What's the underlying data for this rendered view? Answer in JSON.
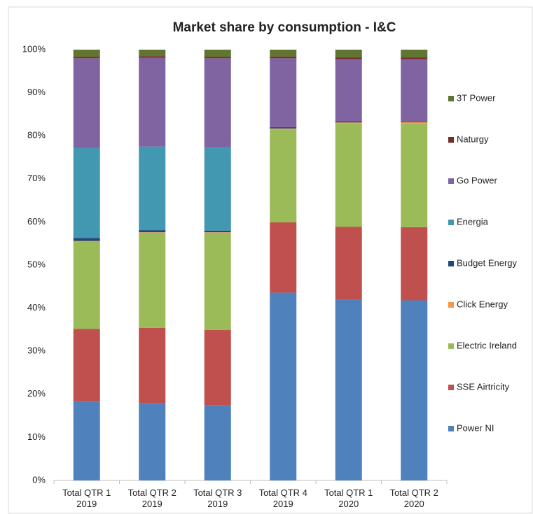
{
  "chart_data": {
    "type": "stacked_bar",
    "title": "Market share by consumption - I&C",
    "categories": [
      "Total QTR 1 2019",
      "Total QTR 2 2019",
      "Total QTR 3 2019",
      "Total QTR 4 2019",
      "Total QTR 1 2020",
      "Total QTR 2 2020"
    ],
    "series": [
      {
        "name": "Power NI",
        "color": "#4f81bd",
        "values": [
          18.3,
          18.0,
          17.4,
          43.6,
          41.9,
          41.8
        ]
      },
      {
        "name": "SSE Airtricity",
        "color": "#c0504d",
        "values": [
          16.9,
          17.4,
          17.5,
          16.3,
          17.0,
          17.0
        ]
      },
      {
        "name": "Electric Ireland",
        "color": "#9bbb59",
        "values": [
          20.3,
          22.1,
          22.6,
          21.5,
          24.0,
          24.1
        ]
      },
      {
        "name": "Click Energy",
        "color": "#f79646",
        "values": [
          0.1,
          0.1,
          0.1,
          0.3,
          0.2,
          0.3
        ]
      },
      {
        "name": "Budget Energy",
        "color": "#1f497d",
        "values": [
          0.7,
          0.5,
          0.4,
          0.3,
          0.3,
          0.2
        ]
      },
      {
        "name": "Energia",
        "color": "#4198b0",
        "values": [
          20.9,
          19.4,
          19.3,
          0,
          0,
          0
        ]
      },
      {
        "name": "Go Power",
        "color": "#8064a2",
        "values": [
          20.8,
          20.6,
          20.7,
          16.0,
          14.4,
          14.4
        ]
      },
      {
        "name": "Naturgy",
        "color": "#772c2a",
        "values": [
          0.3,
          0.4,
          0.3,
          0.4,
          0.4,
          0.4
        ]
      },
      {
        "name": "3T Power",
        "color": "#5f7530",
        "values": [
          1.7,
          1.5,
          1.7,
          1.6,
          1.8,
          1.8
        ]
      }
    ],
    "ylim": [
      0,
      100
    ],
    "yticks": [
      {
        "value": 0,
        "label": "0%"
      },
      {
        "value": 10,
        "label": "10%"
      },
      {
        "value": 20,
        "label": "20%"
      },
      {
        "value": 30,
        "label": "30%"
      },
      {
        "value": 40,
        "label": "40%"
      },
      {
        "value": 50,
        "label": "50%"
      },
      {
        "value": 60,
        "label": "60%"
      },
      {
        "value": 70,
        "label": "70%"
      },
      {
        "value": 80,
        "label": "80%"
      },
      {
        "value": 90,
        "label": "90%"
      },
      {
        "value": 100,
        "label": "100%"
      }
    ],
    "grid": false,
    "legend": "right"
  }
}
